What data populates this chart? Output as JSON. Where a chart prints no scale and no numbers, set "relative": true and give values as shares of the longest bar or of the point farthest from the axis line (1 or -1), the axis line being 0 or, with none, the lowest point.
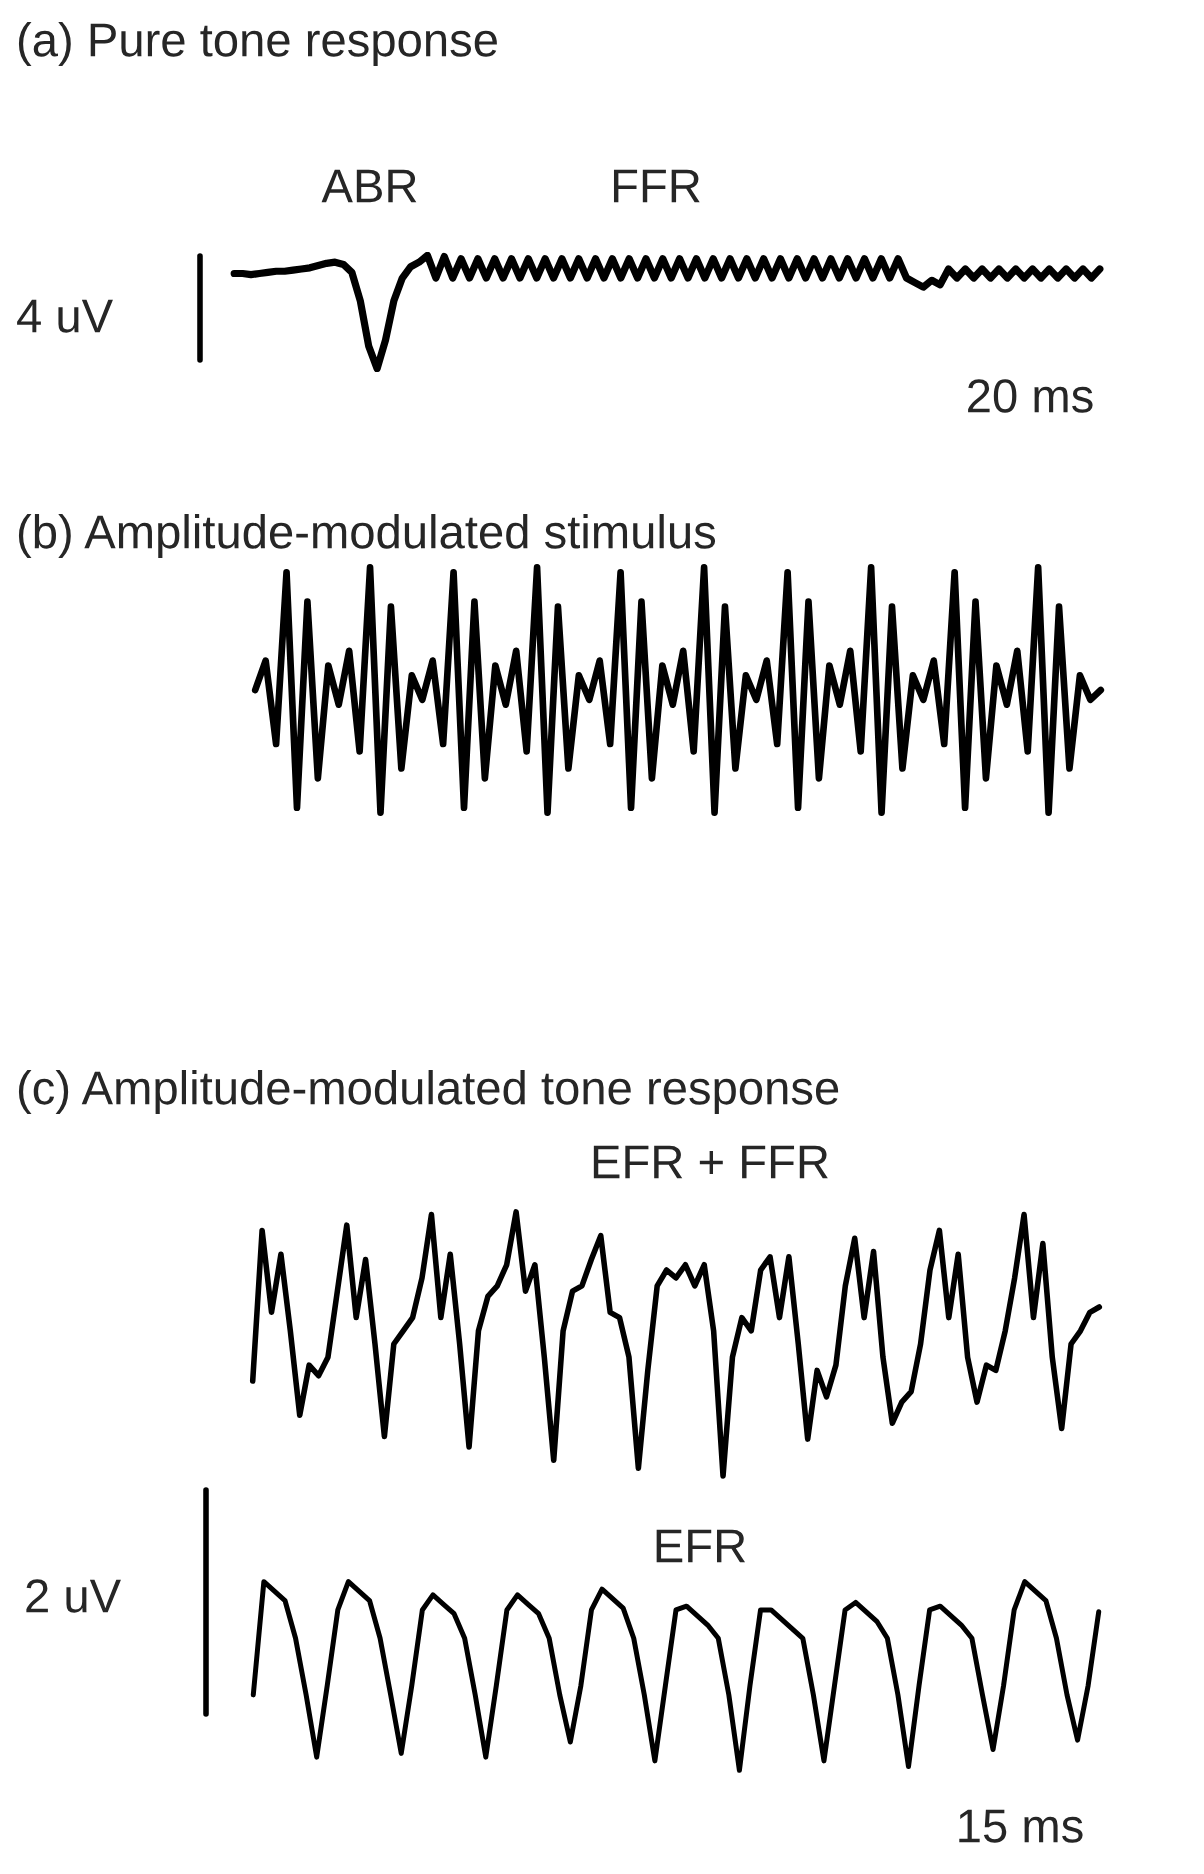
{
  "chart_data": [
    {
      "type": "line",
      "relative": true,
      "title": "(a) Pure tone response",
      "annotations": [
        "ABR",
        "FFR",
        "4 uV",
        "20 ms"
      ],
      "categories": [
        null,
        null,
        null,
        null,
        null,
        null,
        null,
        null,
        null,
        null,
        null,
        null,
        null,
        null,
        null,
        null,
        null,
        null,
        null,
        null,
        null,
        null,
        null,
        null,
        null,
        null,
        null,
        null,
        null,
        null,
        null,
        null,
        null,
        null,
        null,
        null,
        null,
        null,
        null,
        null,
        null,
        null,
        null,
        null,
        null,
        null,
        null,
        null,
        null,
        null,
        null,
        null,
        null,
        null,
        null,
        null,
        null,
        null,
        null,
        null,
        null,
        null,
        null,
        null,
        null,
        null,
        null,
        null,
        null,
        null,
        null,
        null,
        null,
        null,
        null,
        null,
        null,
        null,
        null,
        null,
        null,
        null,
        null,
        null,
        null,
        null,
        null,
        null,
        null,
        null,
        null,
        null,
        null,
        null,
        null,
        null,
        null,
        null,
        null,
        null,
        null,
        null,
        null,
        null
      ],
      "series": [
        {
          "color": "#000000",
          "values": [
            0.84,
            0.84,
            0.83,
            0.84,
            0.85,
            0.86,
            0.86,
            0.87,
            0.88,
            0.89,
            0.91,
            0.93,
            0.94,
            0.92,
            0.85,
            0.6,
            0.2,
            0.0,
            0.25,
            0.6,
            0.8,
            0.9,
            0.94,
            1.0,
            0.8,
            0.99,
            0.8,
            0.97,
            0.8,
            0.97,
            0.8,
            0.97,
            0.8,
            0.97,
            0.8,
            0.97,
            0.8,
            0.97,
            0.8,
            0.97,
            0.8,
            0.97,
            0.8,
            0.97,
            0.8,
            0.97,
            0.8,
            0.97,
            0.8,
            0.97,
            0.8,
            0.97,
            0.8,
            0.97,
            0.8,
            0.97,
            0.8,
            0.97,
            0.8,
            0.97,
            0.8,
            0.97,
            0.8,
            0.97,
            0.8,
            0.97,
            0.8,
            0.97,
            0.8,
            0.97,
            0.8,
            0.97,
            0.8,
            0.97,
            0.8,
            0.97,
            0.8,
            0.97,
            0.8,
            0.97,
            0.8,
            0.76,
            0.72,
            0.78,
            0.74,
            0.88,
            0.8,
            0.88,
            0.8,
            0.88,
            0.8,
            0.88,
            0.8,
            0.88,
            0.8,
            0.88,
            0.8,
            0.88,
            0.8,
            0.88,
            0.8,
            0.88,
            0.8,
            0.88
          ]
        }
      ]
    },
    {
      "type": "line",
      "relative": true,
      "title": "(b) Amplitude-modulated stimulus",
      "categories": [
        null,
        null,
        null,
        null,
        null,
        null,
        null,
        null,
        null,
        null,
        null,
        null,
        null,
        null,
        null,
        null,
        null,
        null,
        null,
        null,
        null,
        null,
        null,
        null,
        null,
        null,
        null,
        null,
        null,
        null,
        null,
        null,
        null,
        null,
        null,
        null,
        null,
        null,
        null,
        null,
        null,
        null,
        null,
        null,
        null,
        null,
        null,
        null,
        null,
        null,
        null,
        null,
        null,
        null,
        null,
        null,
        null,
        null,
        null,
        null,
        null,
        null,
        null,
        null,
        null,
        null,
        null,
        null,
        null,
        null,
        null,
        null,
        null,
        null,
        null,
        null,
        null,
        null,
        null,
        null,
        null,
        null
      ],
      "series": [
        {
          "color": "#000000",
          "values": [
            0.5,
            0.62,
            0.28,
            0.98,
            0.02,
            0.86,
            0.14,
            0.6,
            0.44,
            0.66,
            0.25,
            1.0,
            0.0,
            0.84,
            0.18,
            0.56,
            0.46,
            0.62,
            0.28,
            0.98,
            0.02,
            0.86,
            0.14,
            0.6,
            0.44,
            0.66,
            0.25,
            1.0,
            0.0,
            0.84,
            0.18,
            0.56,
            0.46,
            0.62,
            0.28,
            0.98,
            0.02,
            0.86,
            0.14,
            0.6,
            0.44,
            0.66,
            0.25,
            1.0,
            0.0,
            0.84,
            0.18,
            0.56,
            0.46,
            0.62,
            0.28,
            0.98,
            0.02,
            0.86,
            0.14,
            0.6,
            0.44,
            0.66,
            0.25,
            1.0,
            0.0,
            0.84,
            0.18,
            0.56,
            0.46,
            0.62,
            0.28,
            0.98,
            0.02,
            0.86,
            0.14,
            0.6,
            0.44,
            0.66,
            0.25,
            1.0,
            0.0,
            0.84,
            0.18,
            0.56,
            0.46,
            0.5
          ]
        }
      ]
    },
    {
      "type": "line",
      "relative": true,
      "title": "(c) Amplitude-modulated tone response",
      "categories": [
        null,
        null,
        null,
        null,
        null,
        null,
        null,
        null,
        null,
        null,
        null,
        null,
        null,
        null,
        null,
        null,
        null,
        null,
        null,
        null,
        null,
        null,
        null,
        null,
        null,
        null,
        null,
        null,
        null,
        null,
        null,
        null,
        null,
        null,
        null,
        null,
        null,
        null,
        null,
        null,
        null,
        null,
        null,
        null,
        null,
        null,
        null,
        null,
        null,
        null,
        null,
        null,
        null,
        null,
        null,
        null,
        null,
        null,
        null,
        null,
        null,
        null,
        null,
        null,
        null,
        null,
        null,
        null,
        null,
        null,
        null,
        null,
        null,
        null,
        null,
        null,
        null,
        null,
        null,
        null,
        null,
        null,
        null,
        null,
        null,
        null,
        null,
        null,
        null,
        null,
        null
      ],
      "series": [
        {
          "name": "EFR + FFR",
          "color": "#000000",
          "values": [
            0.36,
            0.93,
            0.62,
            0.84,
            0.55,
            0.23,
            0.42,
            0.38,
            0.45,
            0.7,
            0.95,
            0.6,
            0.82,
            0.5,
            0.15,
            0.5,
            0.55,
            0.6,
            0.75,
            0.99,
            0.6,
            0.84,
            0.5,
            0.11,
            0.55,
            0.68,
            0.72,
            0.8,
            1.0,
            0.7,
            0.8,
            0.45,
            0.06,
            0.55,
            0.7,
            0.72,
            0.82,
            0.91,
            0.62,
            0.6,
            0.45,
            0.03,
            0.4,
            0.72,
            0.78,
            0.75,
            0.8,
            0.72,
            0.8,
            0.55,
            0.0,
            0.45,
            0.6,
            0.55,
            0.78,
            0.83,
            0.6,
            0.83,
            0.5,
            0.14,
            0.4,
            0.3,
            0.42,
            0.72,
            0.9,
            0.6,
            0.85,
            0.45,
            0.2,
            0.28,
            0.32,
            0.5,
            0.78,
            0.93,
            0.6,
            0.84,
            0.45,
            0.28,
            0.42,
            0.4,
            0.55,
            0.75,
            0.99,
            0.6,
            0.88,
            0.45,
            0.18,
            0.5,
            0.55,
            0.62,
            0.64
          ]
        }
      ]
    },
    {
      "type": "line",
      "relative": true,
      "annotations": [
        "2 uV",
        "15 ms"
      ],
      "categories": [
        null,
        null,
        null,
        null,
        null,
        null,
        null,
        null,
        null,
        null,
        null,
        null,
        null,
        null,
        null,
        null,
        null,
        null,
        null,
        null,
        null,
        null,
        null,
        null,
        null,
        null,
        null,
        null,
        null,
        null,
        null,
        null,
        null,
        null,
        null,
        null,
        null,
        null,
        null,
        null,
        null,
        null,
        null,
        null,
        null,
        null,
        null,
        null,
        null,
        null,
        null,
        null,
        null,
        null,
        null,
        null,
        null,
        null,
        null,
        null,
        null,
        null,
        null,
        null,
        null,
        null,
        null,
        null,
        null,
        null,
        null,
        null,
        null,
        null,
        null,
        null,
        null,
        null,
        null,
        null,
        null
      ],
      "series": [
        {
          "name": "EFR",
          "color": "#000000",
          "values": [
            0.4,
            1.0,
            0.95,
            0.9,
            0.7,
            0.4,
            0.07,
            0.45,
            0.85,
            1.0,
            0.95,
            0.9,
            0.7,
            0.4,
            0.09,
            0.45,
            0.85,
            0.93,
            0.88,
            0.83,
            0.7,
            0.4,
            0.07,
            0.45,
            0.85,
            0.93,
            0.88,
            0.83,
            0.7,
            0.4,
            0.15,
            0.45,
            0.85,
            0.96,
            0.91,
            0.86,
            0.7,
            0.4,
            0.05,
            0.45,
            0.85,
            0.87,
            0.82,
            0.77,
            0.7,
            0.4,
            0.0,
            0.45,
            0.85,
            0.85,
            0.8,
            0.75,
            0.7,
            0.4,
            0.05,
            0.45,
            0.85,
            0.89,
            0.84,
            0.79,
            0.7,
            0.4,
            0.02,
            0.45,
            0.85,
            0.87,
            0.82,
            0.77,
            0.7,
            0.4,
            0.11,
            0.45,
            0.85,
            1.0,
            0.95,
            0.9,
            0.7,
            0.4,
            0.16,
            0.45,
            0.84
          ]
        }
      ]
    }
  ]
}
